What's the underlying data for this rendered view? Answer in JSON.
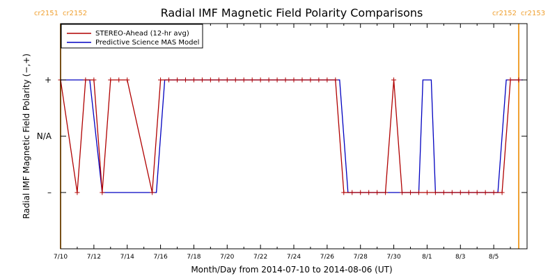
{
  "chart_data": {
    "type": "line",
    "title": "Radial IMF Magnetic Field Polarity Comparisons",
    "xlabel": "Month/Day from 2014-07-10 to 2014-08-06 (UT)",
    "ylabel": "Radial IMF Magnetic Field Polarity (−,+)",
    "xlim": [
      "2014-07-10T00:00",
      "2014-08-07T00:00"
    ],
    "x_ticks": [
      "7/10",
      "7/12",
      "7/14",
      "7/16",
      "7/18",
      "7/20",
      "7/22",
      "7/24",
      "7/26",
      "7/28",
      "7/30",
      "8/1",
      "8/3",
      "8/5"
    ],
    "y_ticks": [
      {
        "label": "+",
        "value": 1
      },
      {
        "label": "N/A",
        "value": 0
      },
      {
        "label": "–",
        "value": -1
      }
    ],
    "ylim": [
      -2,
      2
    ],
    "legend": "top-left",
    "series": [
      {
        "name": "STEREO-Ahead (12-hr avg)",
        "color": "#b00000",
        "marker": "+",
        "points": [
          [
            "2014-07-10T00:00",
            1
          ],
          [
            "2014-07-11T00:00",
            -1
          ],
          [
            "2014-07-11T12:00",
            1
          ],
          [
            "2014-07-12T00:00",
            1
          ],
          [
            "2014-07-12T12:00",
            -1
          ],
          [
            "2014-07-13T00:00",
            1
          ],
          [
            "2014-07-13T12:00",
            1
          ],
          [
            "2014-07-14T00:00",
            1
          ],
          [
            "2014-07-15T12:00",
            -1
          ],
          [
            "2014-07-16T00:00",
            1
          ],
          [
            "2014-07-16T12:00",
            1
          ],
          [
            "2014-07-17T00:00",
            1
          ],
          [
            "2014-07-17T12:00",
            1
          ],
          [
            "2014-07-18T00:00",
            1
          ],
          [
            "2014-07-18T12:00",
            1
          ],
          [
            "2014-07-19T00:00",
            1
          ],
          [
            "2014-07-19T12:00",
            1
          ],
          [
            "2014-07-20T00:00",
            1
          ],
          [
            "2014-07-20T12:00",
            1
          ],
          [
            "2014-07-21T00:00",
            1
          ],
          [
            "2014-07-21T12:00",
            1
          ],
          [
            "2014-07-22T00:00",
            1
          ],
          [
            "2014-07-22T12:00",
            1
          ],
          [
            "2014-07-23T00:00",
            1
          ],
          [
            "2014-07-23T12:00",
            1
          ],
          [
            "2014-07-24T00:00",
            1
          ],
          [
            "2014-07-24T12:00",
            1
          ],
          [
            "2014-07-25T00:00",
            1
          ],
          [
            "2014-07-25T12:00",
            1
          ],
          [
            "2014-07-26T00:00",
            1
          ],
          [
            "2014-07-26T12:00",
            1
          ],
          [
            "2014-07-27T00:00",
            -1
          ],
          [
            "2014-07-27T12:00",
            -1
          ],
          [
            "2014-07-28T00:00",
            -1
          ],
          [
            "2014-07-28T12:00",
            -1
          ],
          [
            "2014-07-29T00:00",
            -1
          ],
          [
            "2014-07-29T12:00",
            -1
          ],
          [
            "2014-07-30T00:00",
            1
          ],
          [
            "2014-07-30T12:00",
            -1
          ],
          [
            "2014-07-31T00:00",
            -1
          ],
          [
            "2014-07-31T12:00",
            -1
          ],
          [
            "2014-08-01T00:00",
            -1
          ],
          [
            "2014-08-01T12:00",
            -1
          ],
          [
            "2014-08-02T00:00",
            -1
          ],
          [
            "2014-08-02T12:00",
            -1
          ],
          [
            "2014-08-03T00:00",
            -1
          ],
          [
            "2014-08-03T12:00",
            -1
          ],
          [
            "2014-08-04T00:00",
            -1
          ],
          [
            "2014-08-04T12:00",
            -1
          ],
          [
            "2014-08-05T00:00",
            -1
          ],
          [
            "2014-08-05T12:00",
            -1
          ],
          [
            "2014-08-06T00:00",
            1
          ],
          [
            "2014-08-06T12:00",
            1
          ]
        ]
      },
      {
        "name": "Predictive Science MAS Model",
        "color": "#0000c0",
        "points": [
          [
            "2014-07-10T00:00",
            1
          ],
          [
            "2014-07-11T18:00",
            1
          ],
          [
            "2014-07-12T12:00",
            -1
          ],
          [
            "2014-07-15T18:00",
            -1
          ],
          [
            "2014-07-16T06:00",
            1
          ],
          [
            "2014-07-26T18:00",
            1
          ],
          [
            "2014-07-27T06:00",
            -1
          ],
          [
            "2014-07-31T12:00",
            -1
          ],
          [
            "2014-07-31T18:00",
            1
          ],
          [
            "2014-08-01T06:00",
            1
          ],
          [
            "2014-08-01T12:00",
            -1
          ],
          [
            "2014-08-05T06:00",
            -1
          ],
          [
            "2014-08-05T18:00",
            1
          ],
          [
            "2014-08-06T18:00",
            1
          ]
        ]
      }
    ],
    "carrington_markers": [
      {
        "labels": [
          "cr2151",
          "cr2152"
        ],
        "x": "2014-07-10T00:00",
        "color": "#f0a030"
      },
      {
        "labels": [
          "cr2152",
          "cr2153"
        ],
        "x": "2014-08-06T12:00",
        "color": "#f0a030"
      }
    ]
  }
}
